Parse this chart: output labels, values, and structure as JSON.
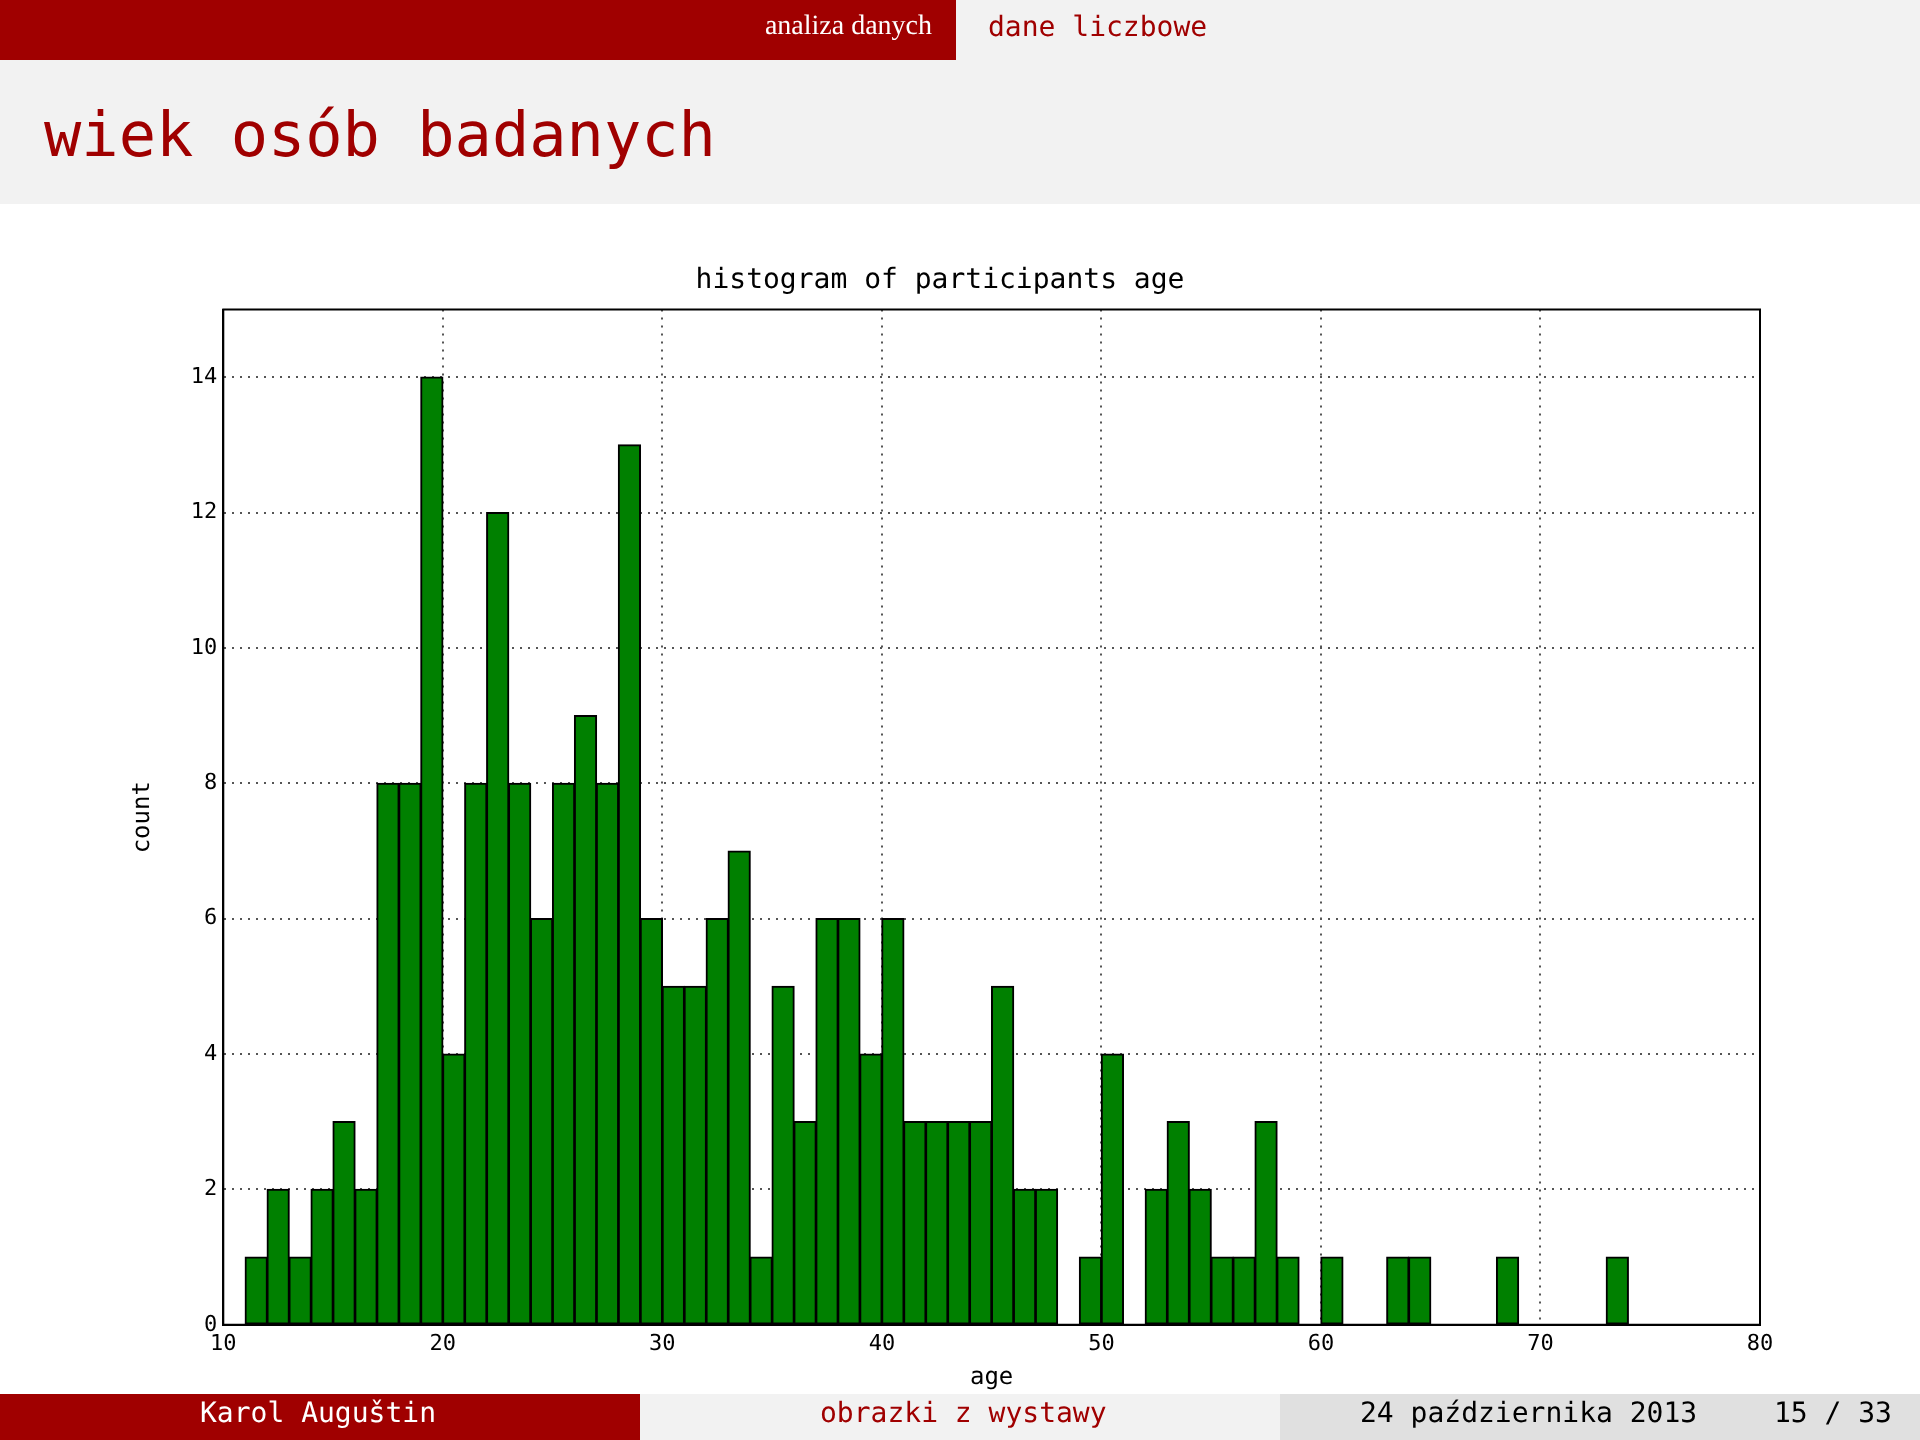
{
  "chart_data": {
    "type": "histogram",
    "title": "histogram of participants age",
    "xlabel": "age",
    "ylabel": "count",
    "bins": [
      11,
      12,
      13,
      14,
      15,
      16,
      17,
      18,
      19,
      20,
      21,
      22,
      23,
      24,
      25,
      26,
      27,
      28,
      29,
      30,
      31,
      32,
      33,
      34,
      35,
      36,
      37,
      38,
      39,
      40,
      41,
      42,
      43,
      44,
      45,
      46,
      47,
      48,
      49,
      50,
      51,
      52,
      53,
      54,
      55,
      56,
      57,
      58,
      59,
      60,
      61,
      62,
      63,
      64,
      65,
      66,
      67,
      68,
      69,
      70,
      71,
      72,
      73,
      74
    ],
    "values": [
      1,
      2,
      1,
      2,
      3,
      2,
      8,
      8,
      14,
      4,
      8,
      12,
      8,
      6,
      8,
      9,
      8,
      13,
      6,
      5,
      5,
      6,
      7,
      1,
      5,
      3,
      6,
      6,
      4,
      6,
      3,
      3,
      3,
      3,
      5,
      2,
      2,
      0,
      1,
      4,
      0,
      2,
      3,
      2,
      1,
      1,
      3,
      1,
      0,
      1,
      0,
      0,
      1,
      1,
      0,
      0,
      0,
      1,
      0,
      0,
      0,
      0,
      1
    ],
    "color": "#008000",
    "xlim": [
      10,
      80
    ],
    "xticks": [
      10,
      20,
      30,
      40,
      50,
      60,
      70,
      80
    ],
    "ylim": [
      0,
      15
    ],
    "yticks": [
      0,
      2,
      4,
      6,
      8,
      10,
      12,
      14
    ],
    "grid": true,
    "annotations": [
      "analiza danych",
      "dane liczbowe",
      "wiek osób badanych",
      "Karol Auguštin",
      "obrazki z wystawy",
      "24 października 2013",
      "15 / 33"
    ]
  }
}
